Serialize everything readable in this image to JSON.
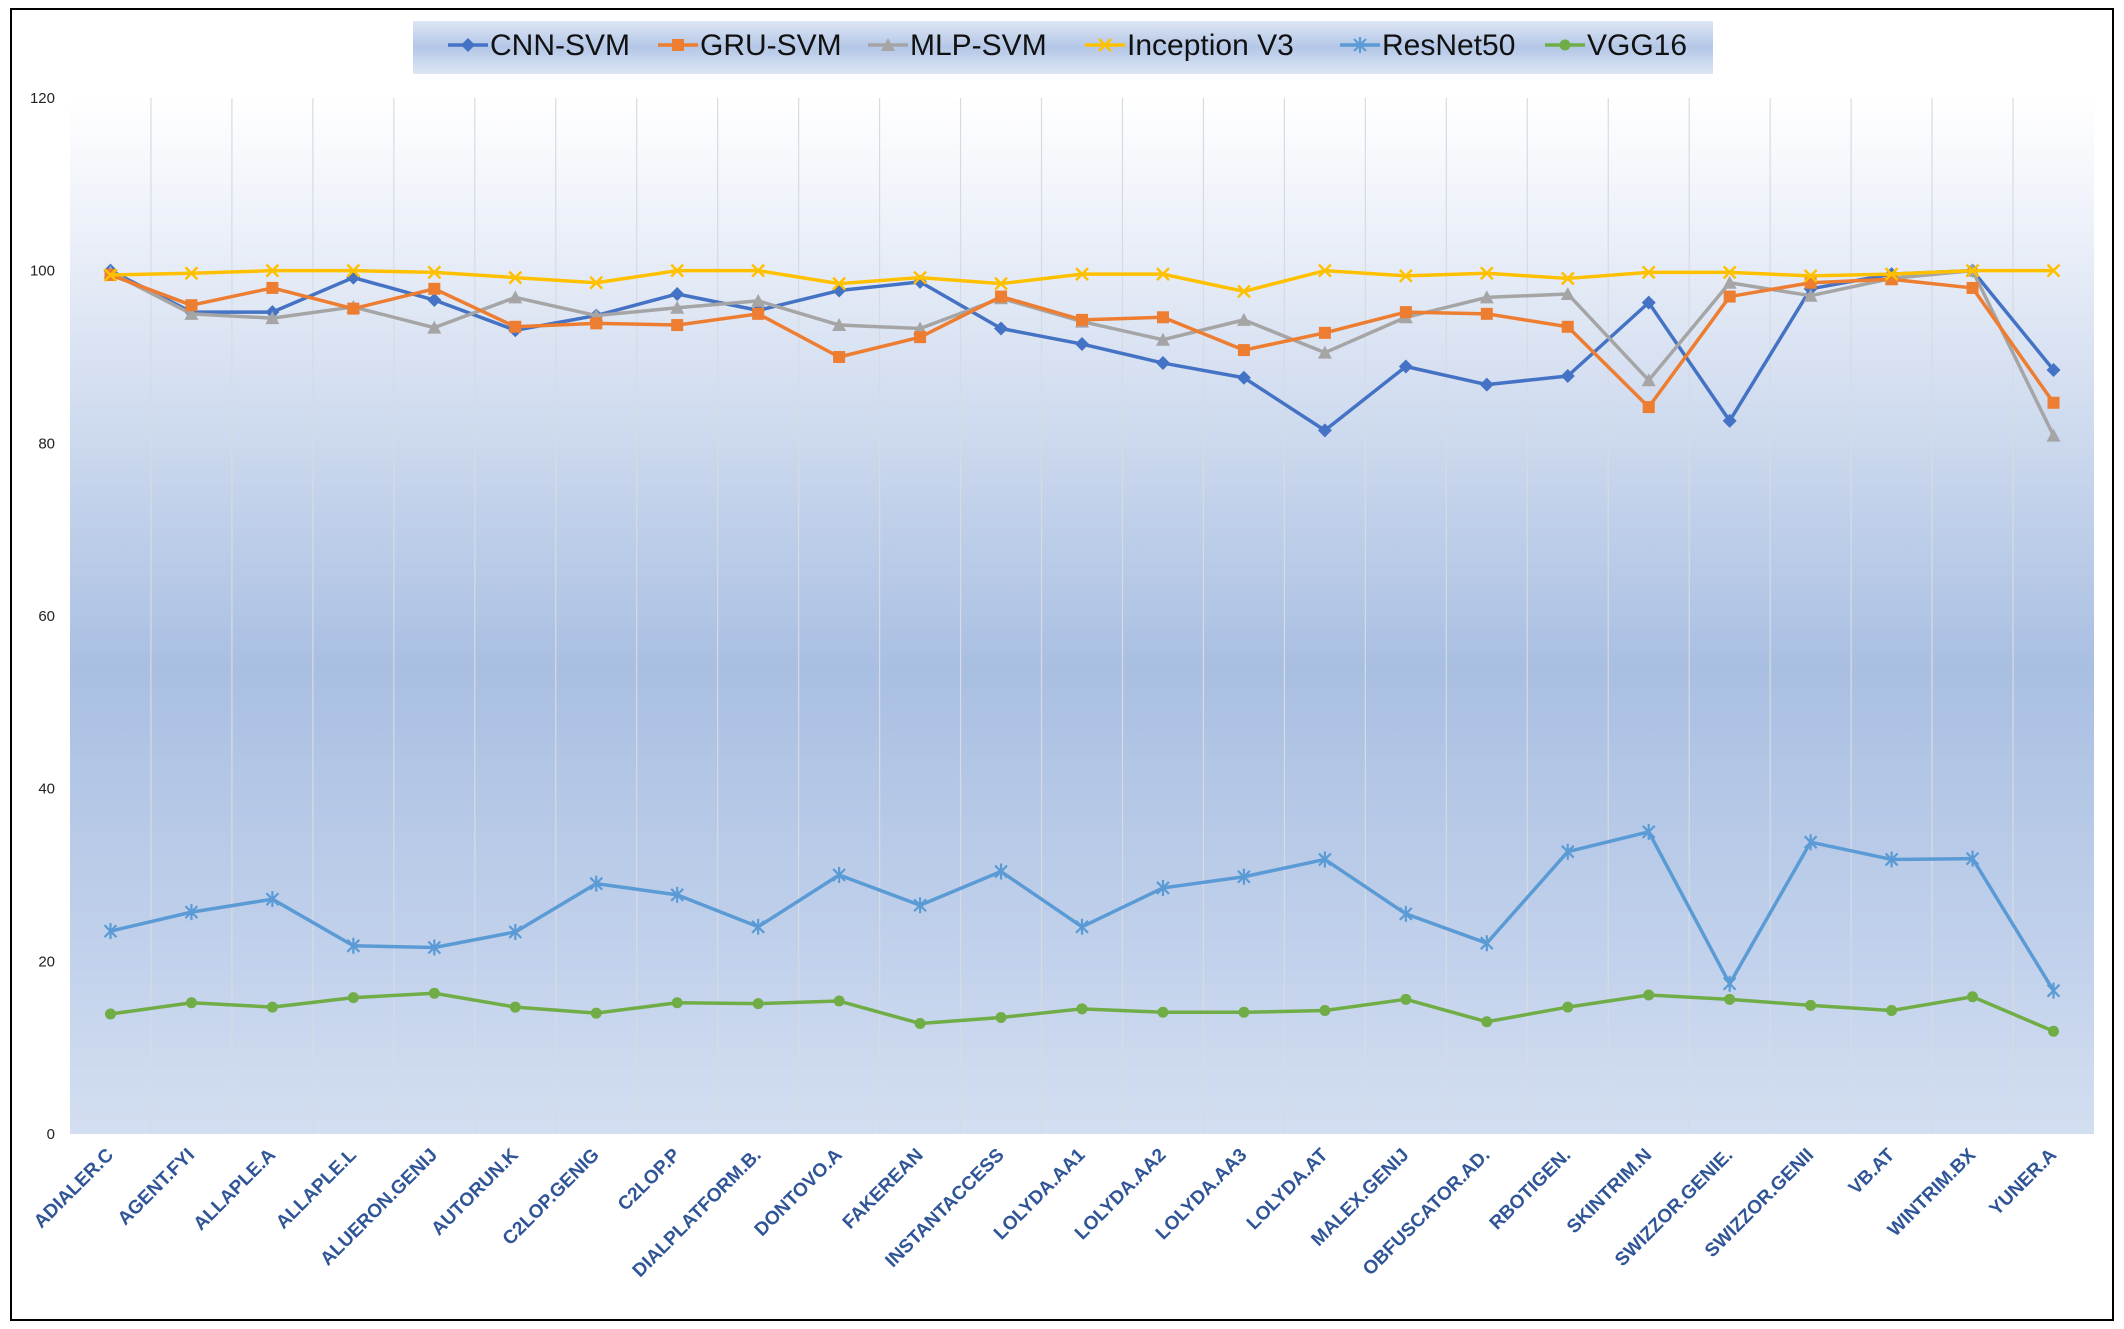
{
  "chart_data": {
    "type": "line",
    "title": "",
    "xlabel": "",
    "ylabel": "",
    "ylim": [
      0,
      120
    ],
    "yticks": [
      0,
      20,
      40,
      60,
      80,
      100,
      120
    ],
    "grid": "vertical",
    "legend_position": "top-center",
    "categories": [
      "ADIALER.C",
      "AGENT.FYI",
      "ALLAPLE.A",
      "ALLAPLE.L",
      "ALUERON.GENIJ",
      "AUTORUN.K",
      "C2LOP.GENIG",
      "C2LOP.P",
      "DIALPLATFORM.B.",
      "DONTOVO.A",
      "FAKEREAN",
      "INSTANTACCESS",
      "LOLYDA.AA1",
      "LOLYDA.AA2",
      "LOLYDA.AA3",
      "LOLYDA.AT",
      "MALEX.GENIJ",
      "OBFUSCATOR.AD.",
      "RBOTIGEN.",
      "SKINTRIM.N",
      "SWIZZOR.GENIE.",
      "SWIZZOR.GENII",
      "VB.AT",
      "WINTRIM.BX",
      "YUNER.A"
    ],
    "series": [
      {
        "name": "CNN-SVM",
        "color": "#4472c4",
        "marker": "diamond",
        "values": [
          100,
          95.2,
          95.2,
          99.2,
          96.6,
          93.1,
          94.8,
          97.3,
          95.4,
          97.7,
          98.7,
          93.3,
          91.5,
          89.3,
          87.6,
          81.5,
          88.9,
          86.8,
          87.8,
          96.3,
          82.6,
          97.9,
          99.6,
          100,
          88.5
        ]
      },
      {
        "name": "GRU-SVM",
        "color": "#ed7d31",
        "marker": "square",
        "values": [
          99.5,
          96,
          98,
          95.6,
          97.9,
          93.5,
          93.9,
          93.7,
          95,
          90,
          92.3,
          97,
          94.3,
          94.6,
          90.8,
          92.8,
          95.2,
          95,
          93.5,
          84.2,
          97,
          98.6,
          99,
          98,
          84.7
        ]
      },
      {
        "name": "MLP-SVM",
        "color": "#a5a5a5",
        "marker": "triangle",
        "values": [
          99.8,
          95,
          94.5,
          95.8,
          93.4,
          96.9,
          94.8,
          95.7,
          96.5,
          93.7,
          93.3,
          96.8,
          94.1,
          92,
          94.3,
          90.5,
          94.6,
          96.9,
          97.3,
          87.3,
          98.6,
          97.1,
          99.1,
          100,
          80.9
        ]
      },
      {
        "name": "Inception V3",
        "color": "#ffc000",
        "marker": "x",
        "values": [
          99.5,
          99.7,
          100,
          100,
          99.8,
          99.2,
          98.6,
          100,
          100,
          98.5,
          99.2,
          98.5,
          99.6,
          99.6,
          97.6,
          100,
          99.4,
          99.7,
          99.1,
          99.8,
          99.8,
          99.4,
          99.6,
          100,
          100
        ]
      },
      {
        "name": "ResNet50",
        "color": "#5b9bd5",
        "marker": "star",
        "values": [
          23.5,
          25.7,
          27.2,
          21.8,
          21.6,
          23.4,
          29,
          27.7,
          24,
          30,
          26.5,
          30.4,
          24,
          28.5,
          29.8,
          31.8,
          25.5,
          22.1,
          32.7,
          35,
          17.4,
          33.8,
          31.8,
          31.9,
          16.6
        ]
      },
      {
        "name": "VGG16",
        "color": "#70ad47",
        "marker": "circle",
        "values": [
          13.9,
          15.2,
          14.7,
          15.8,
          16.3,
          14.7,
          14,
          15.2,
          15.1,
          15.4,
          12.8,
          13.5,
          14.5,
          14.1,
          14.1,
          14.3,
          15.6,
          13,
          14.7,
          16.1,
          15.6,
          14.9,
          14.3,
          15.9,
          11.9
        ]
      }
    ]
  }
}
